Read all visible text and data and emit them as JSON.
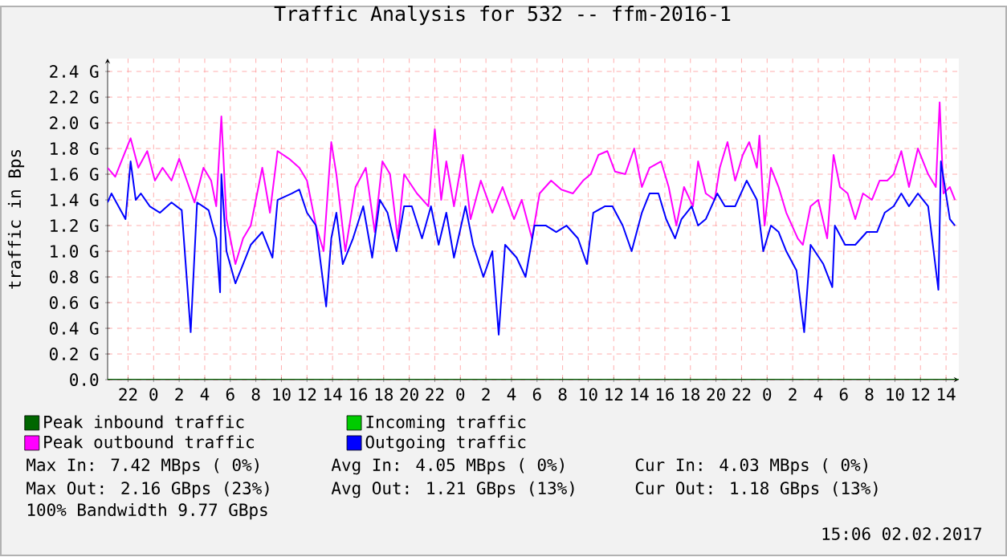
{
  "chart_data": {
    "type": "line",
    "title": "Traffic Analysis for 532 -- ffm-2016-1",
    "ylabel": "traffic in Bps",
    "xlim": [
      "2017-01-30T20:24",
      "2017-02-02T15:00"
    ],
    "ylim": [
      0,
      2.5
    ],
    "xticks": [
      {
        "value": "2017-01-30T22:00",
        "label": "22"
      },
      {
        "value": "2017-01-31T00:00",
        "label": "0"
      },
      {
        "value": "2017-01-31T02:00",
        "label": "2"
      },
      {
        "value": "2017-01-31T04:00",
        "label": "4"
      },
      {
        "value": "2017-01-31T06:00",
        "label": "6"
      },
      {
        "value": "2017-01-31T08:00",
        "label": "8"
      },
      {
        "value": "2017-01-31T10:00",
        "label": "10"
      },
      {
        "value": "2017-01-31T12:00",
        "label": "12"
      },
      {
        "value": "2017-01-31T14:00",
        "label": "14"
      },
      {
        "value": "2017-01-31T16:00",
        "label": "16"
      },
      {
        "value": "2017-01-31T18:00",
        "label": "18"
      },
      {
        "value": "2017-01-31T20:00",
        "label": "20"
      },
      {
        "value": "2017-01-31T22:00",
        "label": "22"
      },
      {
        "value": "2017-02-01T00:00",
        "label": "0"
      },
      {
        "value": "2017-02-01T02:00",
        "label": "2"
      },
      {
        "value": "2017-02-01T04:00",
        "label": "4"
      },
      {
        "value": "2017-02-01T06:00",
        "label": "6"
      },
      {
        "value": "2017-02-01T08:00",
        "label": "8"
      },
      {
        "value": "2017-02-01T10:00",
        "label": "10"
      },
      {
        "value": "2017-02-01T12:00",
        "label": "12"
      },
      {
        "value": "2017-02-01T14:00",
        "label": "14"
      },
      {
        "value": "2017-02-01T16:00",
        "label": "16"
      },
      {
        "value": "2017-02-01T18:00",
        "label": "18"
      },
      {
        "value": "2017-02-01T20:00",
        "label": "20"
      },
      {
        "value": "2017-02-01T22:00",
        "label": "22"
      },
      {
        "value": "2017-02-02T00:00",
        "label": "0"
      },
      {
        "value": "2017-02-02T02:00",
        "label": "2"
      },
      {
        "value": "2017-02-02T04:00",
        "label": "4"
      },
      {
        "value": "2017-02-02T06:00",
        "label": "6"
      },
      {
        "value": "2017-02-02T08:00",
        "label": "8"
      },
      {
        "value": "2017-02-02T10:00",
        "label": "10"
      },
      {
        "value": "2017-02-02T12:00",
        "label": "12"
      },
      {
        "value": "2017-02-02T14:00",
        "label": "14"
      }
    ],
    "yticks": [
      {
        "value": 0,
        "label": "0.0"
      },
      {
        "value": 0.2,
        "label": "0.2 G"
      },
      {
        "value": 0.4,
        "label": "0.4 G"
      },
      {
        "value": 0.6,
        "label": "0.6 G"
      },
      {
        "value": 0.8,
        "label": "0.8 G"
      },
      {
        "value": 1.0,
        "label": "1.0 G"
      },
      {
        "value": 1.2,
        "label": "1.2 G"
      },
      {
        "value": 1.4,
        "label": "1.4 G"
      },
      {
        "value": 1.6,
        "label": "1.6 G"
      },
      {
        "value": 1.8,
        "label": "1.8 G"
      },
      {
        "value": 2.0,
        "label": "2.0 G"
      },
      {
        "value": 2.2,
        "label": "2.2 G"
      },
      {
        "value": 2.4,
        "label": "2.4 G"
      }
    ],
    "grid": true,
    "legend": "bottom",
    "series": [
      {
        "name": "Peak inbound traffic",
        "color": "#006600",
        "x": [
          "2017-01-30T20:24",
          "2017-02-02T15:00"
        ],
        "values": [
          0,
          0
        ]
      },
      {
        "name": "Incoming traffic",
        "color": "#00cc00"
      },
      {
        "name": "Peak outbound traffic",
        "color": "#ff00ff",
        "x": [
          "2017-01-30T20:24",
          "2017-01-30T21:00",
          "2017-01-30T22:12",
          "2017-01-30T22:48",
          "2017-01-30T23:30",
          "2017-01-31T00:06",
          "2017-01-31T00:42",
          "2017-01-31T01:24",
          "2017-01-31T02:00",
          "2017-01-31T02:36",
          "2017-01-31T03:12",
          "2017-01-31T03:54",
          "2017-01-31T04:30",
          "2017-01-31T04:54",
          "2017-01-31T05:18",
          "2017-01-31T05:42",
          "2017-01-31T06:24",
          "2017-01-31T07:00",
          "2017-01-31T07:36",
          "2017-01-31T08:30",
          "2017-01-31T09:06",
          "2017-01-31T09:42",
          "2017-01-31T10:36",
          "2017-01-31T11:24",
          "2017-01-31T12:00",
          "2017-01-31T12:42",
          "2017-01-31T13:18",
          "2017-01-31T13:54",
          "2017-01-31T14:18",
          "2017-01-31T15:00",
          "2017-01-31T15:48",
          "2017-01-31T16:36",
          "2017-01-31T17:18",
          "2017-01-31T17:54",
          "2017-01-31T18:30",
          "2017-01-31T19:06",
          "2017-01-31T19:36",
          "2017-01-31T20:36",
          "2017-01-31T21:30",
          "2017-01-31T22:00",
          "2017-01-31T22:30",
          "2017-01-31T22:54",
          "2017-01-31T23:30",
          "2017-02-01T00:12",
          "2017-02-01T00:48",
          "2017-02-01T01:36",
          "2017-02-01T02:30",
          "2017-02-01T03:18",
          "2017-02-01T04:12",
          "2017-02-01T04:48",
          "2017-02-01T05:36",
          "2017-02-01T06:12",
          "2017-02-01T07:06",
          "2017-02-01T07:54",
          "2017-02-01T08:48",
          "2017-02-01T09:36",
          "2017-02-01T10:12",
          "2017-02-01T10:48",
          "2017-02-01T11:30",
          "2017-02-01T12:06",
          "2017-02-01T12:54",
          "2017-02-01T13:36",
          "2017-02-01T14:12",
          "2017-02-01T14:48",
          "2017-02-01T15:42",
          "2017-02-01T16:18",
          "2017-02-01T16:54",
          "2017-02-01T17:30",
          "2017-02-01T18:12",
          "2017-02-01T18:36",
          "2017-02-01T19:12",
          "2017-02-01T19:54",
          "2017-02-01T20:18",
          "2017-02-01T20:54",
          "2017-02-01T21:30",
          "2017-02-01T22:06",
          "2017-02-01T22:36",
          "2017-02-01T23:12",
          "2017-02-01T23:24",
          "2017-02-01T23:48",
          "2017-02-02T00:18",
          "2017-02-02T00:54",
          "2017-02-02T01:30",
          "2017-02-02T02:24",
          "2017-02-02T02:48",
          "2017-02-02T03:24",
          "2017-02-02T04:00",
          "2017-02-02T04:42",
          "2017-02-02T05:12",
          "2017-02-02T05:42",
          "2017-02-02T06:18",
          "2017-02-02T06:54",
          "2017-02-02T07:30",
          "2017-02-02T08:12",
          "2017-02-02T08:48",
          "2017-02-02T09:24",
          "2017-02-02T09:54",
          "2017-02-02T10:30",
          "2017-02-02T11:06",
          "2017-02-02T11:48",
          "2017-02-02T12:36",
          "2017-02-02T13:12",
          "2017-02-02T13:30",
          "2017-02-02T13:48",
          "2017-02-02T14:18",
          "2017-02-02T14:42"
        ],
        "values": [
          1.65,
          1.58,
          1.88,
          1.65,
          1.78,
          1.55,
          1.65,
          1.55,
          1.72,
          1.55,
          1.38,
          1.65,
          1.55,
          1.35,
          2.05,
          1.25,
          0.9,
          1.1,
          1.2,
          1.65,
          1.3,
          1.78,
          1.72,
          1.65,
          1.55,
          1.2,
          1.0,
          1.85,
          1.6,
          1.0,
          1.5,
          1.65,
          1.15,
          1.7,
          1.6,
          1.1,
          1.6,
          1.45,
          1.35,
          1.95,
          1.4,
          1.7,
          1.35,
          1.75,
          1.25,
          1.55,
          1.3,
          1.5,
          1.25,
          1.4,
          1.1,
          1.45,
          1.55,
          1.48,
          1.45,
          1.55,
          1.6,
          1.75,
          1.78,
          1.62,
          1.6,
          1.8,
          1.5,
          1.65,
          1.7,
          1.5,
          1.2,
          1.5,
          1.35,
          1.7,
          1.45,
          1.4,
          1.65,
          1.85,
          1.55,
          1.75,
          1.85,
          1.65,
          1.9,
          1.2,
          1.65,
          1.5,
          1.3,
          1.1,
          1.05,
          1.35,
          1.4,
          1.1,
          1.75,
          1.5,
          1.45,
          1.25,
          1.45,
          1.4,
          1.55,
          1.55,
          1.6,
          1.78,
          1.5,
          1.8,
          1.6,
          1.5,
          2.16,
          1.45,
          1.5,
          1.4
        ]
      },
      {
        "name": "Outgoing traffic",
        "color": "#0000ff",
        "x": [
          "2017-01-30T20:24",
          "2017-01-30T20:42",
          "2017-01-30T21:48",
          "2017-01-30T22:12",
          "2017-01-30T22:36",
          "2017-01-30T23:00",
          "2017-01-30T23:42",
          "2017-01-31T00:30",
          "2017-01-31T01:24",
          "2017-01-31T02:12",
          "2017-01-31T02:54",
          "2017-01-31T03:24",
          "2017-01-31T04:18",
          "2017-01-31T04:54",
          "2017-01-31T05:12",
          "2017-01-31T05:18",
          "2017-01-31T05:42",
          "2017-01-31T06:24",
          "2017-01-31T07:00",
          "2017-01-31T07:36",
          "2017-01-31T08:30",
          "2017-01-31T09:18",
          "2017-01-31T09:42",
          "2017-01-31T10:48",
          "2017-01-31T11:24",
          "2017-01-31T12:00",
          "2017-01-31T12:42",
          "2017-01-31T13:30",
          "2017-01-31T13:54",
          "2017-01-31T14:18",
          "2017-01-31T14:48",
          "2017-01-31T15:36",
          "2017-01-31T16:24",
          "2017-01-31T17:06",
          "2017-01-31T17:42",
          "2017-01-31T18:18",
          "2017-01-31T19:00",
          "2017-01-31T19:36",
          "2017-01-31T20:12",
          "2017-01-31T21:00",
          "2017-01-31T21:42",
          "2017-01-31T22:18",
          "2017-01-31T22:54",
          "2017-01-31T23:30",
          "2017-02-01T00:24",
          "2017-02-01T01:00",
          "2017-02-01T01:48",
          "2017-02-01T02:30",
          "2017-02-01T03:00",
          "2017-02-01T03:30",
          "2017-02-01T04:24",
          "2017-02-01T05:06",
          "2017-02-01T05:48",
          "2017-02-01T06:42",
          "2017-02-01T07:30",
          "2017-02-01T08:18",
          "2017-02-01T09:12",
          "2017-02-01T09:54",
          "2017-02-01T10:24",
          "2017-02-01T11:18",
          "2017-02-01T11:54",
          "2017-02-01T12:42",
          "2017-02-01T13:24",
          "2017-02-01T14:12",
          "2017-02-01T14:48",
          "2017-02-01T15:30",
          "2017-02-01T16:06",
          "2017-02-01T16:48",
          "2017-02-01T17:18",
          "2017-02-01T18:06",
          "2017-02-01T18:36",
          "2017-02-01T19:12",
          "2017-02-01T20:06",
          "2017-02-01T20:42",
          "2017-02-01T21:30",
          "2017-02-01T22:24",
          "2017-02-01T23:12",
          "2017-02-01T23:42",
          "2017-02-02T00:18",
          "2017-02-02T00:54",
          "2017-02-02T01:30",
          "2017-02-02T02:18",
          "2017-02-02T02:54",
          "2017-02-02T03:24",
          "2017-02-02T04:24",
          "2017-02-02T05:06",
          "2017-02-02T05:18",
          "2017-02-02T06:06",
          "2017-02-02T06:54",
          "2017-02-02T07:48",
          "2017-02-02T08:36",
          "2017-02-02T09:12",
          "2017-02-02T09:54",
          "2017-02-02T10:30",
          "2017-02-02T11:06",
          "2017-02-02T11:48",
          "2017-02-02T12:36",
          "2017-02-02T13:24",
          "2017-02-02T13:36",
          "2017-02-02T14:18",
          "2017-02-02T14:42"
        ],
        "values": [
          1.38,
          1.45,
          1.25,
          1.7,
          1.4,
          1.45,
          1.35,
          1.3,
          1.38,
          1.32,
          0.37,
          1.38,
          1.32,
          1.1,
          0.68,
          1.6,
          1.0,
          0.75,
          0.9,
          1.05,
          1.15,
          0.95,
          1.4,
          1.45,
          1.48,
          1.3,
          1.2,
          0.57,
          1.1,
          1.3,
          0.9,
          1.1,
          1.35,
          0.95,
          1.4,
          1.3,
          1.0,
          1.35,
          1.35,
          1.1,
          1.35,
          1.05,
          1.3,
          0.95,
          1.35,
          1.05,
          0.8,
          1.0,
          0.35,
          1.05,
          0.95,
          0.8,
          1.2,
          1.2,
          1.15,
          1.2,
          1.1,
          0.9,
          1.3,
          1.35,
          1.35,
          1.2,
          1.0,
          1.3,
          1.45,
          1.45,
          1.25,
          1.1,
          1.25,
          1.35,
          1.2,
          1.25,
          1.45,
          1.35,
          1.35,
          1.55,
          1.4,
          1.0,
          1.2,
          1.15,
          1.0,
          0.85,
          0.37,
          1.05,
          0.9,
          0.72,
          1.2,
          1.05,
          1.05,
          1.15,
          1.15,
          1.3,
          1.35,
          1.45,
          1.35,
          1.45,
          1.35,
          0.7,
          1.7,
          1.25,
          1.2
        ]
      }
    ],
    "annotations": [
      "Max In: 7.42 MBps ( 0%)",
      "Avg In: 4.05 MBps ( 0%)",
      "Cur In: 4.03 MBps ( 0%)",
      "Max Out: 2.16 GBps (23%)",
      "Avg Out: 1.21 GBps (13%)",
      "Cur Out: 1.18 GBps (13%)",
      "100% Bandwidth 9.77 GBps",
      "15:06 02.02.2017"
    ]
  }
}
